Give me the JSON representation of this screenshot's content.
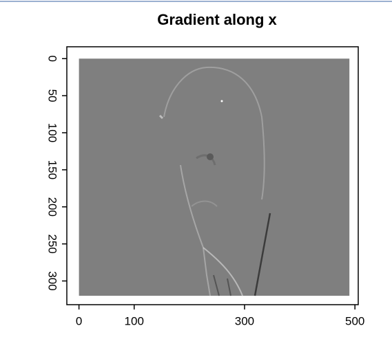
{
  "chart_data": {
    "type": "image",
    "title": "Gradient along x",
    "extent": [
      0,
      490,
      320,
      0
    ],
    "xlim": [
      -22,
      506
    ],
    "ylim": [
      332,
      -16
    ],
    "xticks": [
      0,
      100,
      300,
      500
    ],
    "yticks": [
      0,
      50,
      100,
      150,
      200,
      250,
      300
    ]
  }
}
